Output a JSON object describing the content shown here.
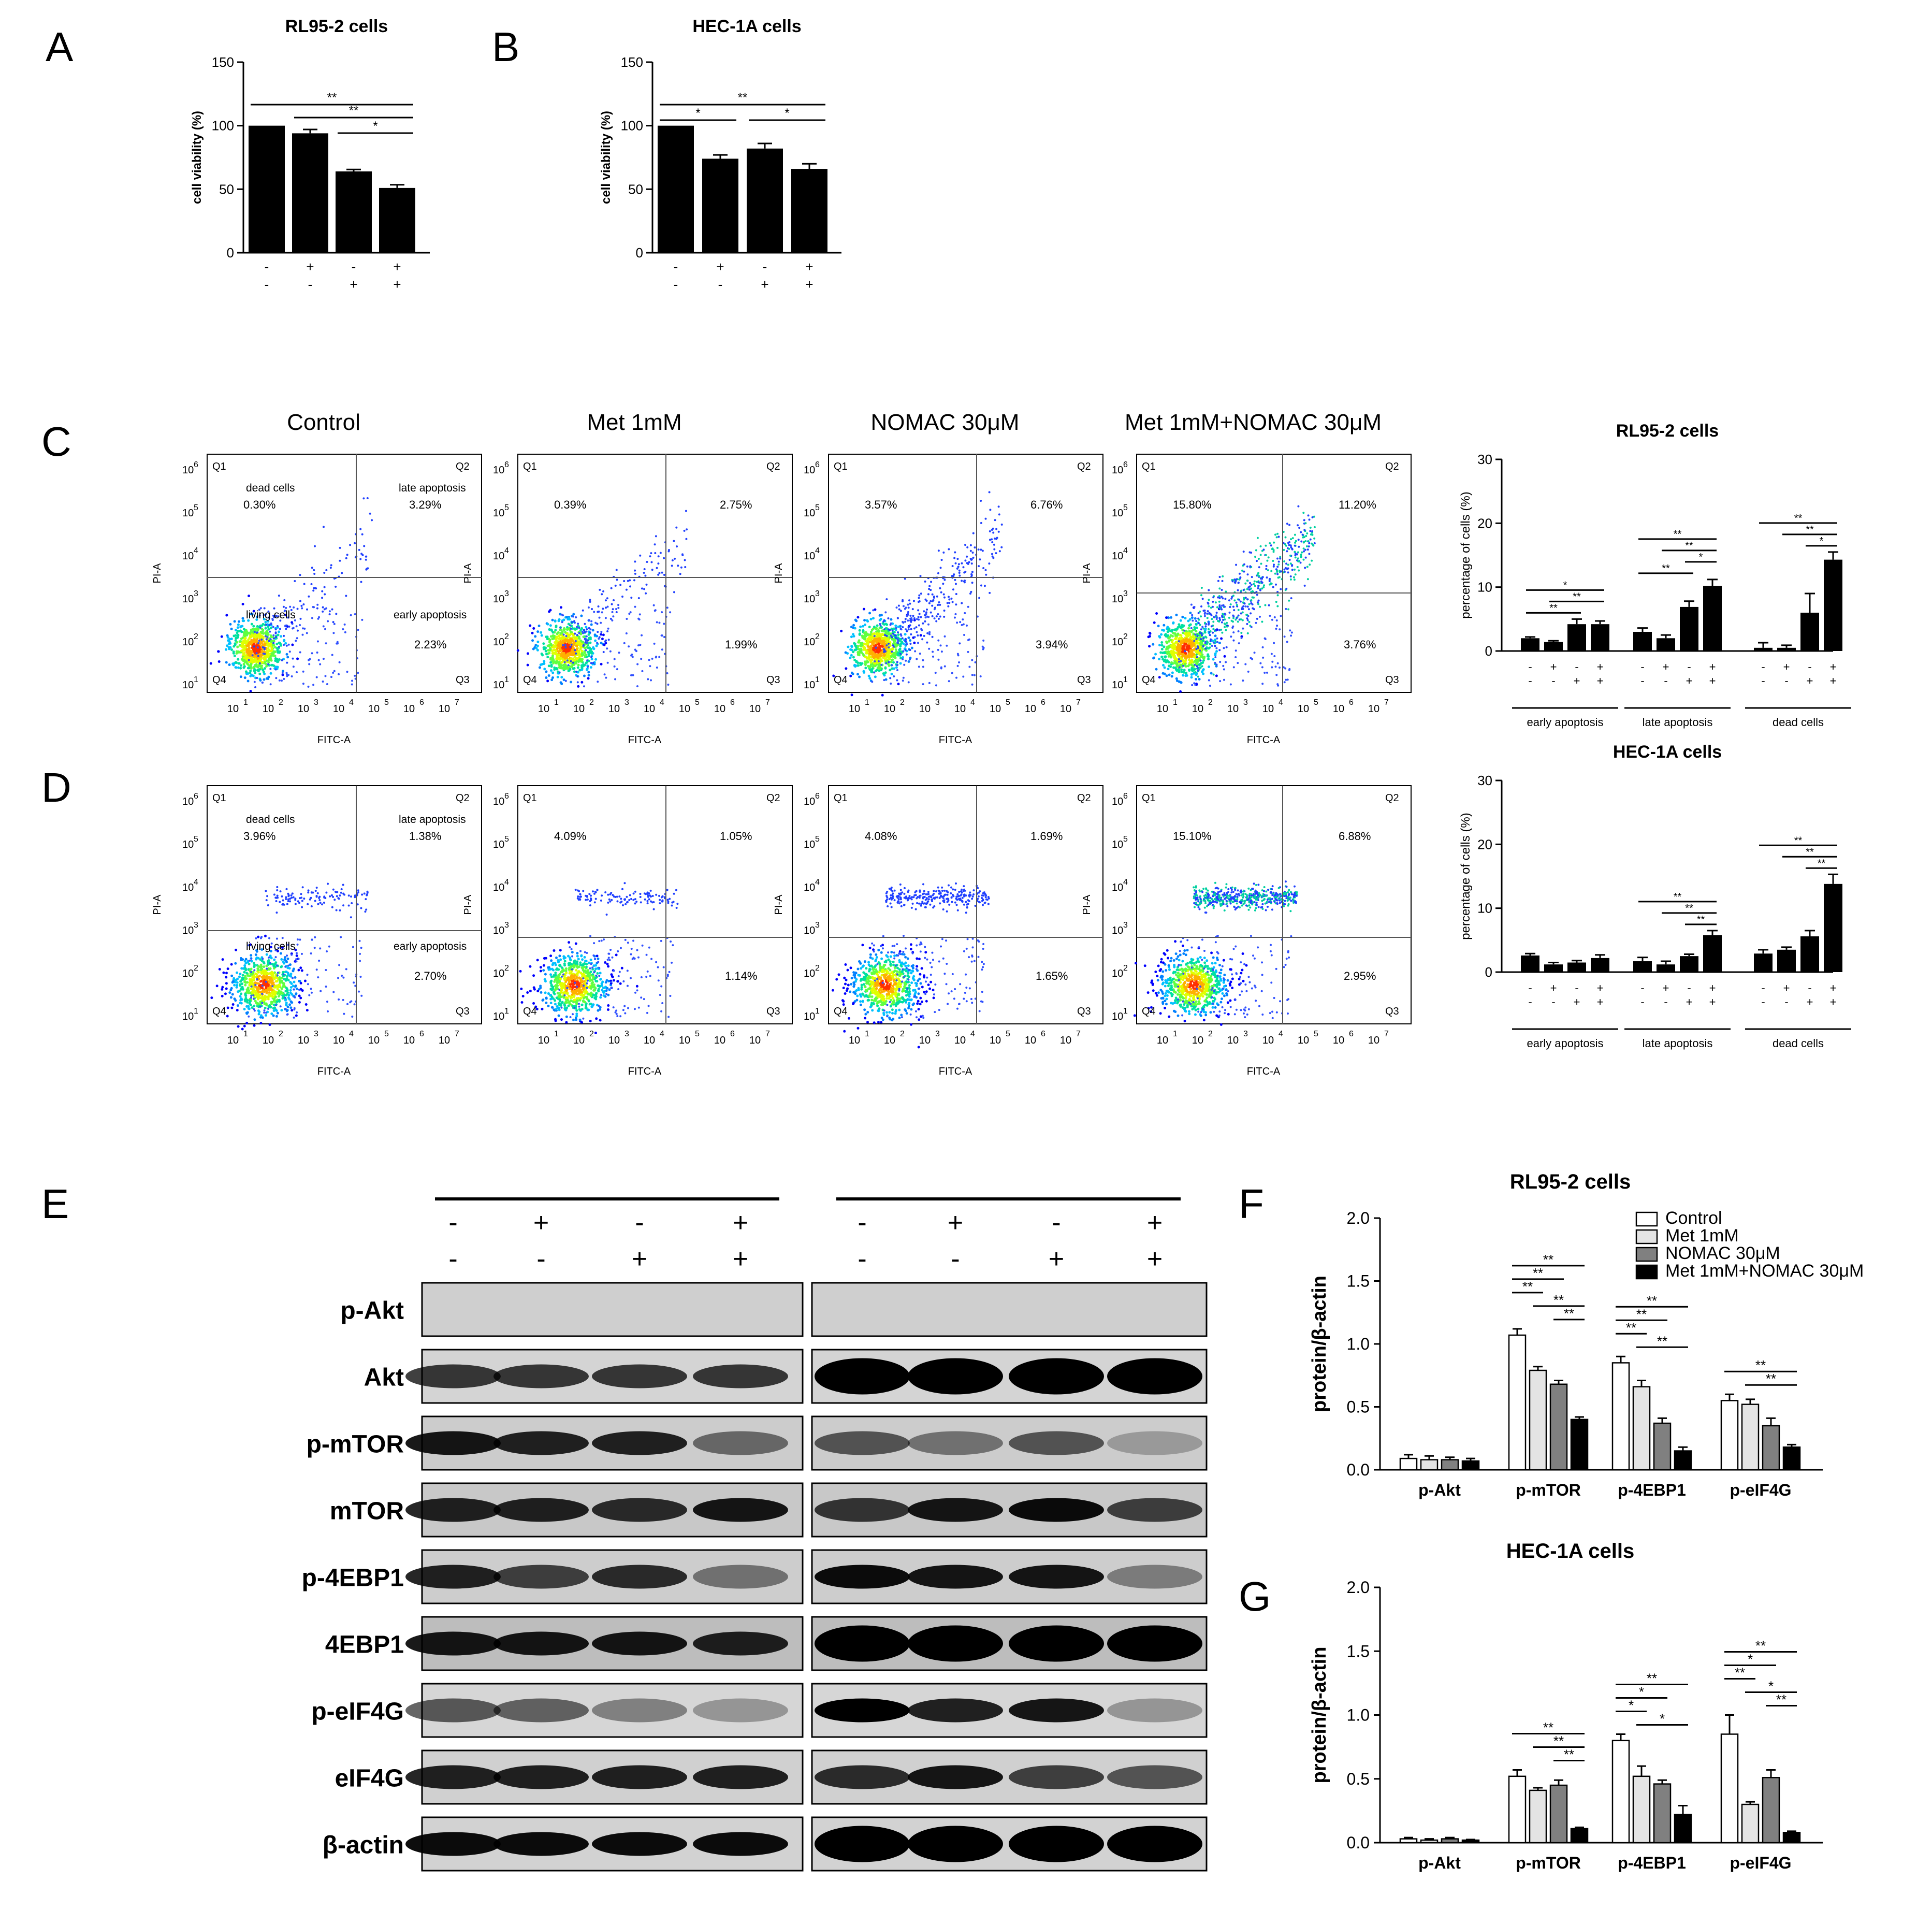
{
  "treatment_rows": {
    "met": [
      "-",
      "+",
      "-",
      "+"
    ],
    "nomac": [
      "-",
      "-",
      "+",
      "+"
    ]
  },
  "panel_labels": [
    "A",
    "B",
    "C",
    "D",
    "E",
    "F",
    "G"
  ],
  "cell_lines": {
    "rl95": "RL95-2 cells",
    "hec": "HEC-1A cells"
  },
  "row_labels": {
    "met": "Met 1mM",
    "nomac": "NOMAC 30μM"
  },
  "flow": {
    "conditions": [
      "Control",
      "Met 1mM",
      "NOMAC 30μM",
      "Met 1mM+NOMAC 30μM"
    ],
    "xlabel": "FITC-A",
    "ylabel": "PI-A",
    "quadrants": [
      "Q1",
      "Q2",
      "Q3",
      "Q4"
    ],
    "quadrant_names": {
      "dead": "dead cells",
      "late": "late apoptosis",
      "early": "early apoptosis",
      "living": "living cells"
    },
    "ticks": [
      "1",
      "2",
      "3",
      "4",
      "5",
      "6",
      "7"
    ],
    "rl95": [
      {
        "q1": "0.30%",
        "q2": "3.29%",
        "q3": "2.23%"
      },
      {
        "q1": "0.39%",
        "q2": "2.75%",
        "q3": "1.99%"
      },
      {
        "q1": "3.57%",
        "q2": "6.76%",
        "q3": "3.94%"
      },
      {
        "q1": "15.80%",
        "q2": "11.20%",
        "q3": "3.76%"
      }
    ],
    "hec": [
      {
        "q1": "3.96%",
        "q2": "1.38%",
        "q3": "2.70%"
      },
      {
        "q1": "4.09%",
        "q2": "1.05%",
        "q3": "1.14%"
      },
      {
        "q1": "4.08%",
        "q2": "1.69%",
        "q3": "1.65%"
      },
      {
        "q1": "15.10%",
        "q2": "6.88%",
        "q3": "2.95%"
      }
    ]
  },
  "western": {
    "proteins": [
      "p-Akt",
      "Akt",
      "p-mTOR",
      "mTOR",
      "p-4EBP1",
      "4EBP1",
      "p-eIF4G",
      "eIF4G",
      "β-actin"
    ]
  },
  "chart_data": [
    {
      "id": "A",
      "type": "bar",
      "title": "RL95-2 cells",
      "ylabel": "cell viability (%)",
      "ylim": [
        0,
        150
      ],
      "yticks": [
        0,
        50,
        100,
        150
      ],
      "values": [
        100,
        94,
        64,
        51
      ],
      "errors": [
        0,
        3,
        1.5,
        2.5
      ],
      "sig": [
        {
          "from": 0,
          "to": 3,
          "label": "**"
        },
        {
          "from": 1,
          "to": 3,
          "label": "**"
        },
        {
          "from": 2,
          "to": 3,
          "label": "*"
        }
      ]
    },
    {
      "id": "B",
      "type": "bar",
      "title": "HEC-1A cells",
      "ylabel": "cell viability (%)",
      "ylim": [
        0,
        150
      ],
      "yticks": [
        0,
        50,
        100,
        150
      ],
      "values": [
        100,
        74,
        82,
        66
      ],
      "errors": [
        0,
        3,
        4,
        4
      ],
      "sig": [
        {
          "from": 0,
          "to": 3,
          "label": "**"
        },
        {
          "from": 0,
          "to": 1,
          "label": "*"
        },
        {
          "from": 2,
          "to": 3,
          "label": "*"
        }
      ]
    },
    {
      "id": "C-bar",
      "type": "bar",
      "title": "RL95-2 cells",
      "ylabel": "percentage of cells (%)",
      "ylim": [
        0,
        30
      ],
      "yticks": [
        0,
        10,
        20,
        30
      ],
      "groups": [
        "early apoptosis",
        "late apoptosis",
        "dead cells"
      ],
      "values": [
        [
          2.0,
          1.4,
          4.2,
          4.2
        ],
        [
          3.0,
          2.0,
          6.9,
          10.2
        ],
        [
          0.5,
          0.5,
          6.0,
          14.3
        ]
      ],
      "errors": [
        [
          0.2,
          0.2,
          0.8,
          0.5
        ],
        [
          0.6,
          0.5,
          0.9,
          1.0
        ],
        [
          0.8,
          0.4,
          3.0,
          1.2
        ]
      ],
      "sig": [
        [
          {
            "from": 0,
            "to": 3,
            "label": "*"
          },
          {
            "from": 1,
            "to": 3,
            "label": "**"
          },
          {
            "from": 0,
            "to": 2,
            "label": "**"
          }
        ],
        [
          {
            "from": 0,
            "to": 3,
            "label": "**"
          },
          {
            "from": 1,
            "to": 3,
            "label": "**"
          },
          {
            "from": 2,
            "to": 3,
            "label": "*"
          },
          {
            "from": 0,
            "to": 2,
            "label": "**"
          }
        ],
        [
          {
            "from": 0,
            "to": 3,
            "label": "**"
          },
          {
            "from": 1,
            "to": 3,
            "label": "**"
          },
          {
            "from": 2,
            "to": 3,
            "label": "*"
          }
        ]
      ]
    },
    {
      "id": "D-bar",
      "type": "bar",
      "title": "HEC-1A cells",
      "ylabel": "percentage of cells (%)",
      "ylim": [
        0,
        30
      ],
      "yticks": [
        0,
        10,
        20,
        30
      ],
      "groups": [
        "early apoptosis",
        "late apoptosis",
        "dead cells"
      ],
      "values": [
        [
          2.6,
          1.2,
          1.5,
          2.2
        ],
        [
          1.7,
          1.2,
          2.5,
          5.8
        ],
        [
          2.9,
          3.5,
          5.6,
          13.8
        ]
      ],
      "errors": [
        [
          0.3,
          0.3,
          0.3,
          0.5
        ],
        [
          0.6,
          0.5,
          0.3,
          0.7
        ],
        [
          0.6,
          0.4,
          0.9,
          1.5
        ]
      ],
      "sig": [
        [],
        [
          {
            "from": 0,
            "to": 3,
            "label": "**"
          },
          {
            "from": 1,
            "to": 3,
            "label": "**"
          },
          {
            "from": 2,
            "to": 3,
            "label": "**"
          }
        ],
        [
          {
            "from": 0,
            "to": 3,
            "label": "**"
          },
          {
            "from": 1,
            "to": 3,
            "label": "**"
          },
          {
            "from": 2,
            "to": 3,
            "label": "**"
          }
        ]
      ]
    },
    {
      "id": "F",
      "type": "bar",
      "title": "RL95-2 cells",
      "ylabel": "protein/β-actin",
      "ylim": [
        0,
        2.0
      ],
      "yticks": [
        "0.0",
        "0.5",
        "1.0",
        "1.5",
        "2.0"
      ],
      "categories": [
        "p-Akt",
        "p-mTOR",
        "p-4EBP1",
        "p-eIF4G"
      ],
      "series": [
        {
          "name": "Control",
          "values": [
            0.09,
            1.07,
            0.85,
            0.55
          ],
          "errors": [
            0.03,
            0.05,
            0.05,
            0.05
          ]
        },
        {
          "name": "Met 1mM",
          "values": [
            0.08,
            0.79,
            0.66,
            0.52
          ],
          "errors": [
            0.03,
            0.03,
            0.05,
            0.04
          ]
        },
        {
          "name": "NOMAC 30μM",
          "values": [
            0.08,
            0.68,
            0.37,
            0.35
          ],
          "errors": [
            0.02,
            0.03,
            0.04,
            0.06
          ]
        },
        {
          "name": "Met 1mM+NOMAC 30μM",
          "values": [
            0.07,
            0.4,
            0.15,
            0.18
          ],
          "errors": [
            0.02,
            0.02,
            0.03,
            0.02
          ]
        }
      ],
      "legend": "top-right",
      "sig": [
        [],
        [
          {
            "from": 0,
            "to": 3,
            "label": "**"
          },
          {
            "from": 0,
            "to": 2,
            "label": "**"
          },
          {
            "from": 0,
            "to": 1,
            "label": "**"
          },
          {
            "from": 1,
            "to": 3,
            "label": "**"
          },
          {
            "from": 2,
            "to": 3,
            "label": "**"
          }
        ],
        [
          {
            "from": 0,
            "to": 3,
            "label": "**"
          },
          {
            "from": 0,
            "to": 2,
            "label": "**"
          },
          {
            "from": 0,
            "to": 1,
            "label": "**"
          },
          {
            "from": 1,
            "to": 3,
            "label": "**"
          }
        ],
        [
          {
            "from": 0,
            "to": 3,
            "label": "**"
          },
          {
            "from": 1,
            "to": 3,
            "label": "**"
          }
        ]
      ]
    },
    {
      "id": "G",
      "type": "bar",
      "title": "HEC-1A cells",
      "ylabel": "protein/β-actin",
      "ylim": [
        0,
        2.0
      ],
      "yticks": [
        "0.0",
        "0.5",
        "1.0",
        "1.5",
        "2.0"
      ],
      "categories": [
        "p-Akt",
        "p-mTOR",
        "p-4EBP1",
        "p-eIF4G"
      ],
      "series": [
        {
          "name": "Control",
          "values": [
            0.03,
            0.52,
            0.8,
            0.85
          ],
          "errors": [
            0.01,
            0.05,
            0.05,
            0.15
          ]
        },
        {
          "name": "Met 1mM",
          "values": [
            0.02,
            0.41,
            0.52,
            0.3
          ],
          "errors": [
            0.01,
            0.02,
            0.08,
            0.02
          ]
        },
        {
          "name": "NOMAC 30μM",
          "values": [
            0.03,
            0.45,
            0.46,
            0.51
          ],
          "errors": [
            0.01,
            0.04,
            0.03,
            0.06
          ]
        },
        {
          "name": "Met 1mM+NOMAC 30μM",
          "values": [
            0.02,
            0.11,
            0.22,
            0.08
          ],
          "errors": [
            0.005,
            0.01,
            0.07,
            0.01
          ]
        }
      ],
      "sig": [
        [],
        [
          {
            "from": 0,
            "to": 3,
            "label": "**"
          },
          {
            "from": 1,
            "to": 3,
            "label": "**"
          },
          {
            "from": 2,
            "to": 3,
            "label": "**"
          }
        ],
        [
          {
            "from": 0,
            "to": 3,
            "label": "**"
          },
          {
            "from": 0,
            "to": 2,
            "label": "*"
          },
          {
            "from": 0,
            "to": 1,
            "label": "*"
          },
          {
            "from": 1,
            "to": 3,
            "label": "*"
          }
        ],
        [
          {
            "from": 0,
            "to": 3,
            "label": "**"
          },
          {
            "from": 0,
            "to": 2,
            "label": "*"
          },
          {
            "from": 0,
            "to": 1,
            "label": "**"
          },
          {
            "from": 1,
            "to": 3,
            "label": "*"
          },
          {
            "from": 2,
            "to": 3,
            "label": "**"
          }
        ]
      ]
    }
  ]
}
